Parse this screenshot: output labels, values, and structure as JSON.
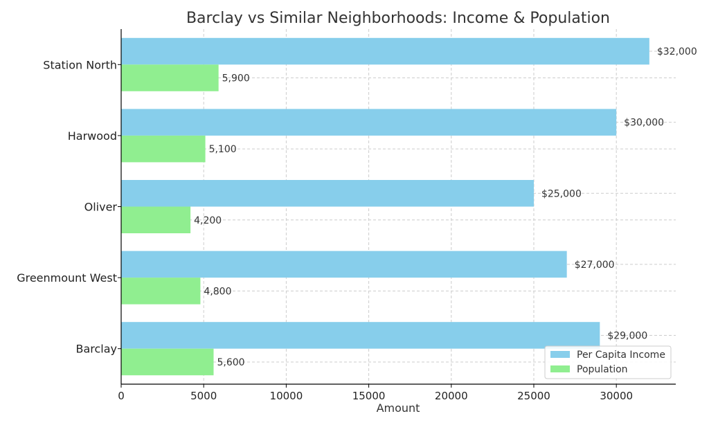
{
  "chart_data": {
    "type": "bar",
    "orientation": "horizontal",
    "title": "Barclay vs Similar Neighborhoods: Income & Population",
    "xlabel": "Amount",
    "ylabel": "",
    "xlim": [
      0,
      33600
    ],
    "xticks": [
      0,
      5000,
      10000,
      15000,
      20000,
      25000,
      30000
    ],
    "grid": true,
    "legend_position": "bottom-right",
    "categories": [
      "Station North",
      "Harwood",
      "Oliver",
      "Greenmount West",
      "Barclay"
    ],
    "series": [
      {
        "name": "Per Capita Income",
        "color": "#87ceeb",
        "values": [
          32000,
          30000,
          25000,
          27000,
          29000
        ],
        "labels": [
          "$32,000",
          "$30,000",
          "$25,000",
          "$27,000",
          "$29,000"
        ]
      },
      {
        "name": "Population",
        "color": "#90ee90",
        "values": [
          5900,
          5100,
          4200,
          4800,
          5600
        ],
        "labels": [
          "5,900",
          "5,100",
          "4,200",
          "4,800",
          "5,600"
        ]
      }
    ]
  }
}
